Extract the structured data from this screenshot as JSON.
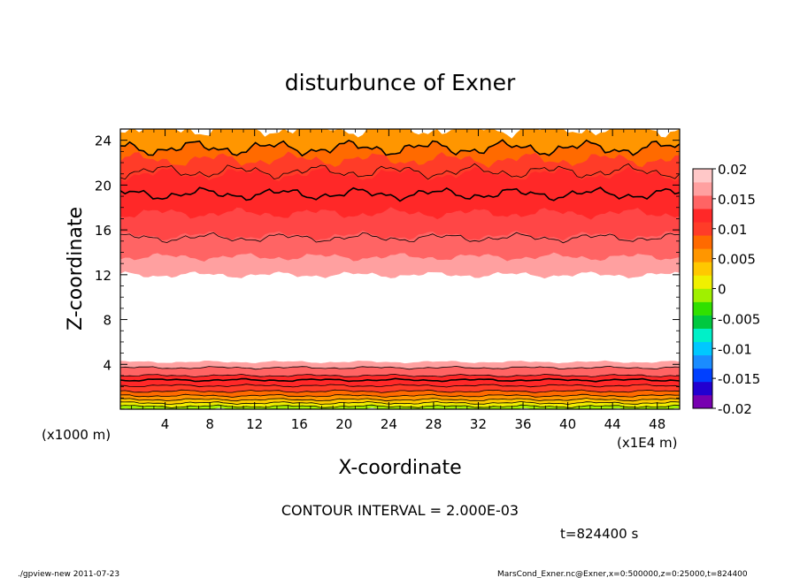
{
  "chart_data": {
    "type": "contour",
    "title": "disturbunce of Exner",
    "xlabel": "X-coordinate",
    "ylabel": "Z-coordinate",
    "x_unit": "(x1E4 m)",
    "y_unit": "(x1000 m)",
    "xlim": [
      0,
      50
    ],
    "ylim": [
      0,
      25
    ],
    "x_ticks": [
      4,
      8,
      12,
      16,
      20,
      24,
      28,
      32,
      36,
      40,
      44,
      48
    ],
    "y_ticks": [
      4,
      8,
      12,
      16,
      20,
      24
    ],
    "contour_interval": 0.002,
    "colorbar": {
      "ticks": [
        "0.02",
        "0.015",
        "0.01",
        "0.005",
        "0",
        "-0.005",
        "-0.01",
        "-0.015",
        "-0.02"
      ],
      "colors": [
        "#7700b0",
        "#2200d0",
        "#0040ff",
        "#1a8cff",
        "#00c8ff",
        "#00f0c8",
        "#00c840",
        "#30e000",
        "#a0f000",
        "#f0f000",
        "#ffc800",
        "#ff9600",
        "#ff6a00",
        "#ff3c28",
        "#ff2828",
        "#ff6464",
        "#ffa0a0",
        "#ffc8c8"
      ]
    },
    "bands": [
      {
        "z0": 0.0,
        "z1": 0.25,
        "value": 0.0025,
        "color": "#a0f000"
      },
      {
        "z0": 0.25,
        "z1": 0.55,
        "value": 0.0045,
        "color": "#f0f000"
      },
      {
        "z0": 0.55,
        "z1": 0.85,
        "value": 0.0065,
        "color": "#ffc800"
      },
      {
        "z0": 0.85,
        "z1": 1.2,
        "value": 0.0085,
        "color": "#ff9600"
      },
      {
        "z0": 1.2,
        "z1": 1.6,
        "value": 0.0105,
        "color": "#ff6a00"
      },
      {
        "z0": 1.6,
        "z1": 2.1,
        "value": 0.0125,
        "color": "#ff3c28"
      },
      {
        "z0": 2.1,
        "z1": 3.0,
        "value": 0.0145,
        "color": "#ff2828"
      },
      {
        "z0": 3.0,
        "z1": 3.7,
        "value": 0.0125,
        "color": "#ff6464"
      },
      {
        "z0": 3.7,
        "z1": 4.2,
        "value": 0.0105,
        "color": "#ffa0a0"
      },
      {
        "z0": 12.0,
        "z1": 13.6,
        "value": 0.0105,
        "color": "#ffa0a0"
      },
      {
        "z0": 13.6,
        "z1": 15.5,
        "value": 0.0125,
        "color": "#ff6464"
      },
      {
        "z0": 15.5,
        "z1": 17.5,
        "value": 0.0135,
        "color": "#ff4646"
      },
      {
        "z0": 17.5,
        "z1": 21.0,
        "value": 0.0145,
        "color": "#ff2828"
      },
      {
        "z0": 21.0,
        "z1": 22.3,
        "value": 0.0125,
        "color": "#ff3c28"
      },
      {
        "z0": 22.3,
        "z1": 23.3,
        "value": 0.0105,
        "color": "#ff6a00"
      },
      {
        "z0": 23.3,
        "z1": 25.0,
        "value": 0.0085,
        "color": "#ff9600"
      }
    ],
    "contour_lines": [
      {
        "z": 15.3,
        "bold": false
      },
      {
        "z": 19.2,
        "bold": true
      },
      {
        "z": 21.2,
        "bold": false
      },
      {
        "z": 23.3,
        "bold": true
      },
      {
        "z": 3.7,
        "bold": false
      },
      {
        "z": 3.0,
        "bold": false
      },
      {
        "z": 2.6,
        "bold": true
      },
      {
        "z": 2.1,
        "bold": false
      },
      {
        "z": 1.6,
        "bold": false
      },
      {
        "z": 1.2,
        "bold": false
      },
      {
        "z": 0.85,
        "bold": false
      },
      {
        "z": 0.55,
        "bold": false
      },
      {
        "z": 0.25,
        "bold": false
      }
    ]
  },
  "annotations": {
    "contour_interval_text": "CONTOUR INTERVAL = 2.000E-03",
    "time_text": "t=824400 s",
    "footer_left": "./gpview-new  2011-07-23",
    "footer_right": "MarsCond_Exner.nc@Exner,x=0:500000,z=0:25000,t=824400"
  }
}
